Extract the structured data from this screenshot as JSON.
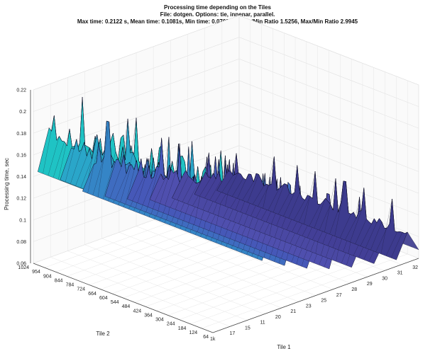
{
  "chart_data": {
    "type": "surface",
    "title": "Processing time depending on the Tiles",
    "subtitle": "File: dotgen. Options: tie, innenar, parallel.",
    "stats": "Max time: 0.2122 s, Mean time: 0.1081s, Min time: 0.0709 s, Mean/Min Ratio 1.5256, Max/Min Ratio 2.9945",
    "xlabel": "Tile 1",
    "ylabel": "Tile 2",
    "zlabel": "Processing time, sec",
    "x_ticks": [
      "17",
      "15",
      "11",
      "20",
      "21",
      "23",
      "25",
      "27",
      "28",
      "29",
      "30",
      "31",
      "32"
    ],
    "y_ticks": [
      "1024",
      "954",
      "904",
      "844",
      "784",
      "724",
      "664",
      "604",
      "544",
      "484",
      "424",
      "364",
      "304",
      "244",
      "184",
      "124",
      "64"
    ],
    "z_ticks": [
      "0.06",
      "0.08",
      "0.1",
      "0.12",
      "0.14",
      "0.16",
      "0.18",
      "0.2",
      "0.22"
    ],
    "zlim": [
      0.06,
      0.22
    ],
    "x_corner_label": "1k",
    "ridges": [
      {
        "depth": 0,
        "base": 0.078,
        "peak": 0.095,
        "color": "#3d3b8e"
      },
      {
        "depth": 1,
        "base": 0.082,
        "peak": 0.1,
        "color": "#433f97"
      },
      {
        "depth": 2,
        "base": 0.086,
        "peak": 0.108,
        "color": "#4a48a3"
      },
      {
        "depth": 3,
        "base": 0.092,
        "peak": 0.118,
        "color": "#4f4fae"
      },
      {
        "depth": 4,
        "base": 0.1,
        "peak": 0.135,
        "color": "#4658b8"
      },
      {
        "depth": 5,
        "base": 0.11,
        "peak": 0.15,
        "color": "#3f6cc0"
      },
      {
        "depth": 6,
        "base": 0.122,
        "peak": 0.165,
        "color": "#3585c6"
      },
      {
        "depth": 7,
        "base": 0.14,
        "peak": 0.185,
        "color": "#2aa6c9"
      },
      {
        "depth": 8,
        "base": 0.155,
        "peak": 0.212,
        "color": "#1fc3c4"
      }
    ],
    "colormap": [
      "#352a87",
      "#3e3ba0",
      "#4650b8",
      "#3e6ccb",
      "#2a8ad2",
      "#18a8c8",
      "#2ebfae",
      "#7fcb8a",
      "#c5c95a",
      "#f0d52e"
    ],
    "grid": true
  }
}
